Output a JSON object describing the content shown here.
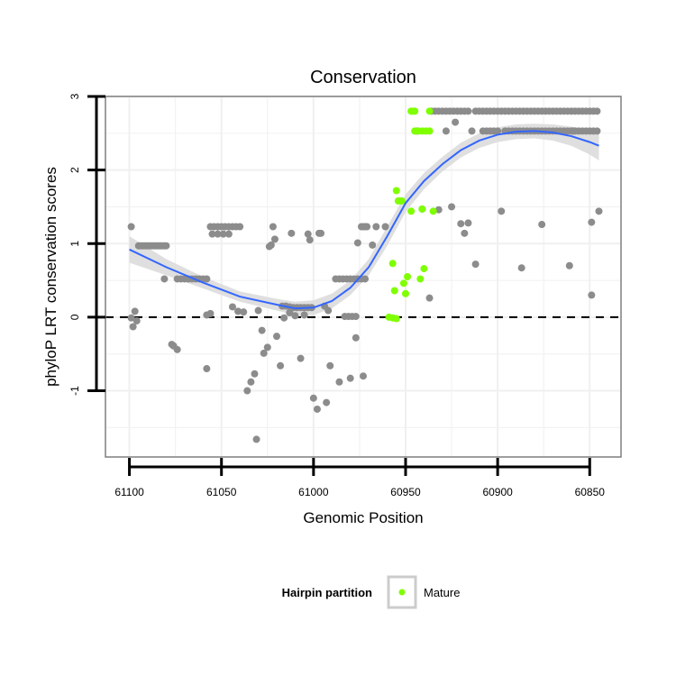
{
  "chart_data": {
    "type": "scatter",
    "title": "Conservation",
    "xlabel": "Genomic Position",
    "ylabel": "phyloP LRT conservation scores",
    "x_reversed": true,
    "xlim": [
      61113,
      60833
    ],
    "ylim": [
      -1.9,
      3.0
    ],
    "x_ticks": [
      61100,
      61050,
      61000,
      60950,
      60900,
      60850
    ],
    "y_ticks": [
      -1,
      0,
      1,
      2,
      3
    ],
    "grid": true,
    "reference_line": {
      "y": 0,
      "style": "dashed",
      "color": "#000000"
    },
    "legend": {
      "title": "Hairpin partition",
      "placement": "bottom",
      "entries": [
        {
          "label": "Mature",
          "color": "#7fff00"
        }
      ]
    },
    "colors": {
      "background_points": "#8c8c8c",
      "mature_points": "#7fff00",
      "smooth_line": "#3366ff",
      "confidence_band": "#d9d9d9"
    },
    "series": [
      {
        "name": "",
        "color": "#8c8c8c",
        "points": [
          [
            61099,
            1.23
          ],
          [
            61099,
            -0.01
          ],
          [
            61098,
            -0.13
          ],
          [
            61097,
            0.08
          ],
          [
            61096,
            -0.05
          ],
          [
            61095,
            0.97
          ],
          [
            61094,
            0.97
          ],
          [
            61093,
            0.97
          ],
          [
            61092,
            0.97
          ],
          [
            61091,
            0.97
          ],
          [
            61090,
            0.97
          ],
          [
            61089,
            0.97
          ],
          [
            61088,
            0.97
          ],
          [
            61087,
            0.97
          ],
          [
            61086,
            0.97
          ],
          [
            61085,
            0.97
          ],
          [
            61084,
            0.97
          ],
          [
            61083,
            0.97
          ],
          [
            61082,
            0.97
          ],
          [
            61081,
            0.97
          ],
          [
            61080,
            0.97
          ],
          [
            61081,
            0.52
          ],
          [
            61077,
            -0.37
          ],
          [
            61076,
            -0.39
          ],
          [
            61074,
            -0.44
          ],
          [
            61074,
            0.52
          ],
          [
            61072,
            0.52
          ],
          [
            61070,
            0.52
          ],
          [
            61068,
            0.52
          ],
          [
            61066,
            0.52
          ],
          [
            61064,
            0.52
          ],
          [
            61062,
            0.52
          ],
          [
            61060,
            0.52
          ],
          [
            61058,
            0.52
          ],
          [
            61058,
            -0.7
          ],
          [
            61058,
            0.03
          ],
          [
            61056,
            0.05
          ],
          [
            61056,
            1.23
          ],
          [
            61054,
            1.23
          ],
          [
            61052,
            1.23
          ],
          [
            61050,
            1.23
          ],
          [
            61048,
            1.23
          ],
          [
            61046,
            1.23
          ],
          [
            61044,
            1.23
          ],
          [
            61042,
            1.23
          ],
          [
            61040,
            1.23
          ],
          [
            61055,
            1.13
          ],
          [
            61052,
            1.13
          ],
          [
            61049,
            1.13
          ],
          [
            61046,
            1.13
          ],
          [
            61044,
            0.14
          ],
          [
            61041,
            0.08
          ],
          [
            61038,
            0.07
          ],
          [
            61036,
            -1.0
          ],
          [
            61034,
            -0.88
          ],
          [
            61032,
            -0.77
          ],
          [
            61031,
            -1.66
          ],
          [
            61030,
            0.09
          ],
          [
            61028,
            -0.18
          ],
          [
            61027,
            -0.49
          ],
          [
            61025,
            -0.41
          ],
          [
            61024,
            0.96
          ],
          [
            61023,
            0.98
          ],
          [
            61022,
            1.23
          ],
          [
            61021,
            1.06
          ],
          [
            61020,
            -0.26
          ],
          [
            61018,
            -0.66
          ],
          [
            61017,
            0.15
          ],
          [
            61015,
            0.15
          ],
          [
            61013,
            0.14
          ],
          [
            61011,
            0.13
          ],
          [
            61009,
            0.13
          ],
          [
            61007,
            0.13
          ],
          [
            61005,
            0.13
          ],
          [
            61003,
            0.13
          ],
          [
            61001,
            0.13
          ],
          [
            61016,
            -0.01
          ],
          [
            61013,
            0.06
          ],
          [
            61012,
            1.14
          ],
          [
            61010,
            0.02
          ],
          [
            61007,
            -0.56
          ],
          [
            61005,
            0.03
          ],
          [
            61003,
            1.13
          ],
          [
            61002,
            1.05
          ],
          [
            61000,
            -1.1
          ],
          [
            60998,
            -1.25
          ],
          [
            60997,
            1.14
          ],
          [
            60996,
            1.14
          ],
          [
            60994,
            0.15
          ],
          [
            60993,
            -1.16
          ],
          [
            60992,
            0.09
          ],
          [
            60991,
            -0.66
          ],
          [
            60988,
            0.52
          ],
          [
            60986,
            0.52
          ],
          [
            60984,
            0.52
          ],
          [
            60982,
            0.52
          ],
          [
            60980,
            0.52
          ],
          [
            60978,
            0.52
          ],
          [
            60976,
            0.52
          ],
          [
            60974,
            0.52
          ],
          [
            60972,
            0.52
          ],
          [
            60986,
            -0.88
          ],
          [
            60980,
            -0.83
          ],
          [
            60977,
            -0.28
          ],
          [
            60973,
            -0.8
          ],
          [
            60983,
            0.01
          ],
          [
            60981,
            0.01
          ],
          [
            60979,
            0.01
          ],
          [
            60977,
            0.01
          ],
          [
            60976,
            1.01
          ],
          [
            60974,
            1.23
          ],
          [
            60973,
            1.23
          ],
          [
            60972,
            1.23
          ],
          [
            60971,
            1.23
          ],
          [
            60968,
            0.98
          ],
          [
            60966,
            1.23
          ],
          [
            60961,
            1.23
          ],
          [
            60944,
            2.53
          ],
          [
            60941,
            1.47
          ],
          [
            60936,
            2.8
          ],
          [
            60934,
            2.8
          ],
          [
            60932,
            2.8
          ],
          [
            60930,
            2.8
          ],
          [
            60928,
            2.8
          ],
          [
            60926,
            2.8
          ],
          [
            60924,
            2.8
          ],
          [
            60922,
            2.8
          ],
          [
            60920,
            2.8
          ],
          [
            60918,
            2.8
          ],
          [
            60916,
            2.8
          ],
          [
            60937,
            0.26
          ],
          [
            60932,
            1.46
          ],
          [
            60928,
            2.53
          ],
          [
            60925,
            1.5
          ],
          [
            60923,
            2.65
          ],
          [
            60920,
            1.27
          ],
          [
            60918,
            1.14
          ],
          [
            60916,
            1.28
          ],
          [
            60914,
            2.53
          ],
          [
            60912,
            0.72
          ],
          [
            60908,
            2.53
          ],
          [
            60906,
            2.53
          ],
          [
            60904,
            2.53
          ],
          [
            60902,
            2.53
          ],
          [
            60900,
            2.53
          ],
          [
            60898,
            1.44
          ],
          [
            60912,
            2.8
          ],
          [
            60910,
            2.8
          ],
          [
            60908,
            2.8
          ],
          [
            60906,
            2.8
          ],
          [
            60904,
            2.8
          ],
          [
            60902,
            2.8
          ],
          [
            60900,
            2.8
          ],
          [
            60898,
            2.8
          ],
          [
            60896,
            2.8
          ],
          [
            60894,
            2.8
          ],
          [
            60892,
            2.8
          ],
          [
            60890,
            2.8
          ],
          [
            60888,
            2.8
          ],
          [
            60886,
            2.8
          ],
          [
            60884,
            2.8
          ],
          [
            60882,
            2.8
          ],
          [
            60880,
            2.8
          ],
          [
            60878,
            2.8
          ],
          [
            60876,
            2.8
          ],
          [
            60874,
            2.8
          ],
          [
            60872,
            2.8
          ],
          [
            60870,
            2.8
          ],
          [
            60868,
            2.8
          ],
          [
            60866,
            2.8
          ],
          [
            60864,
            2.8
          ],
          [
            60862,
            2.8
          ],
          [
            60860,
            2.8
          ],
          [
            60858,
            2.8
          ],
          [
            60856,
            2.8
          ],
          [
            60854,
            2.8
          ],
          [
            60852,
            2.8
          ],
          [
            60850,
            2.8
          ],
          [
            60848,
            2.8
          ],
          [
            60846,
            2.8
          ],
          [
            60896,
            2.53
          ],
          [
            60894,
            2.53
          ],
          [
            60892,
            2.53
          ],
          [
            60890,
            2.53
          ],
          [
            60888,
            2.53
          ],
          [
            60886,
            2.53
          ],
          [
            60884,
            2.53
          ],
          [
            60882,
            2.53
          ],
          [
            60880,
            2.53
          ],
          [
            60878,
            2.53
          ],
          [
            60876,
            2.53
          ],
          [
            60874,
            2.53
          ],
          [
            60872,
            2.53
          ],
          [
            60870,
            2.53
          ],
          [
            60868,
            2.53
          ],
          [
            60866,
            2.53
          ],
          [
            60864,
            2.53
          ],
          [
            60862,
            2.53
          ],
          [
            60860,
            2.53
          ],
          [
            60858,
            2.53
          ],
          [
            60856,
            2.53
          ],
          [
            60854,
            2.53
          ],
          [
            60852,
            2.53
          ],
          [
            60850,
            2.53
          ],
          [
            60848,
            2.53
          ],
          [
            60846,
            2.53
          ],
          [
            60887,
            0.67
          ],
          [
            60876,
            1.26
          ],
          [
            60861,
            0.7
          ],
          [
            60859,
            2.53
          ],
          [
            60849,
            1.29
          ],
          [
            60849,
            0.3
          ],
          [
            60845,
            1.44
          ]
        ]
      },
      {
        "name": "Mature",
        "color": "#7fff00",
        "points": [
          [
            60959,
            0.0
          ],
          [
            60957,
            0.73
          ],
          [
            60957,
            -0.01
          ],
          [
            60956,
            0.36
          ],
          [
            60955,
            -0.02
          ],
          [
            60955,
            1.72
          ],
          [
            60954,
            1.58
          ],
          [
            60953,
            1.58
          ],
          [
            60952,
            1.58
          ],
          [
            60951,
            0.46
          ],
          [
            60950,
            0.32
          ],
          [
            60949,
            0.55
          ],
          [
            60947,
            1.44
          ],
          [
            60947,
            2.8
          ],
          [
            60946,
            2.8
          ],
          [
            60945,
            2.8
          ],
          [
            60945,
            2.53
          ],
          [
            60943,
            2.53
          ],
          [
            60941,
            2.53
          ],
          [
            60939,
            2.53
          ],
          [
            60937,
            2.53
          ],
          [
            60942,
            0.52
          ],
          [
            60941,
            1.47
          ],
          [
            60940,
            0.66
          ],
          [
            60937,
            2.8
          ],
          [
            60935,
            1.44
          ]
        ]
      }
    ],
    "smooth": {
      "x": [
        61100,
        61080,
        61060,
        61040,
        61020,
        61010,
        61000,
        60990,
        60980,
        60970,
        60960,
        60950,
        60940,
        60930,
        60920,
        60910,
        60900,
        60890,
        60880,
        60870,
        60860,
        60850,
        60845
      ],
      "y": [
        0.92,
        0.68,
        0.47,
        0.28,
        0.17,
        0.12,
        0.13,
        0.22,
        0.4,
        0.68,
        1.1,
        1.55,
        1.85,
        2.08,
        2.27,
        2.4,
        2.48,
        2.52,
        2.53,
        2.51,
        2.46,
        2.38,
        2.33
      ],
      "band": [
        0.18,
        0.11,
        0.08,
        0.07,
        0.08,
        0.09,
        0.1,
        0.1,
        0.1,
        0.11,
        0.13,
        0.12,
        0.11,
        0.1,
        0.1,
        0.1,
        0.1,
        0.1,
        0.1,
        0.11,
        0.13,
        0.17,
        0.2
      ]
    }
  }
}
